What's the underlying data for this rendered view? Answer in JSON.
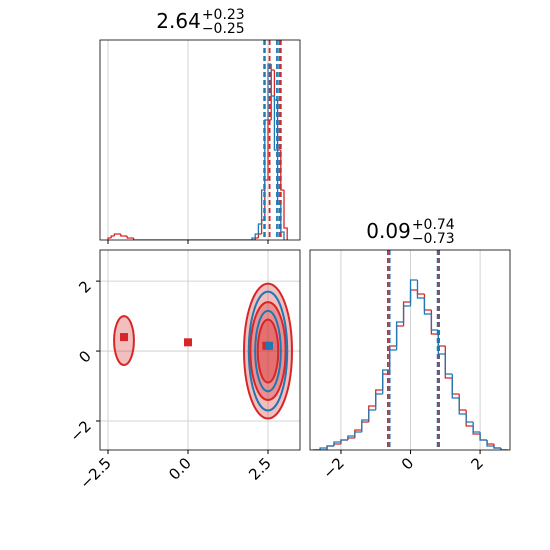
{
  "chart_data": [
    {
      "type": "histogram",
      "title": {
        "value": "2.64",
        "plus": "+0.23",
        "minus": "−0.25"
      },
      "xlim": [
        -2.75,
        3.5
      ],
      "ylim": [
        0,
        100
      ],
      "xticks": [
        -2.5,
        0,
        2.5
      ],
      "grid": true,
      "series": [
        {
          "color": "#d62728",
          "bins": [
            -2.5,
            -2.4,
            -2.3,
            -2.2,
            -2.1,
            -2.0,
            -1.9,
            -1.8,
            -1.7,
            -1.6,
            -1.5,
            -1.4,
            -1.3,
            -1.2,
            -1.1,
            -1.0,
            -0.9,
            -0.8,
            -0.7,
            -0.6,
            -0.5,
            -0.4,
            -0.3,
            -0.2,
            -0.1,
            0,
            0.1,
            0.2,
            0.3,
            0.4,
            0.5,
            0.6,
            0.7,
            0.8,
            0.9,
            1.0,
            1.1,
            1.2,
            1.3,
            1.4,
            1.5,
            1.6,
            1.7,
            1.8,
            1.9,
            2.0,
            2.1,
            2.2,
            2.3,
            2.4,
            2.5,
            2.6,
            2.7,
            2.8,
            2.9,
            3.0,
            3.1
          ],
          "values": [
            1,
            2,
            3,
            3,
            2,
            2,
            1,
            1,
            0,
            0,
            0,
            0,
            0,
            0,
            0,
            0,
            0,
            0,
            0,
            0,
            0,
            0,
            0,
            0,
            0,
            0,
            0,
            0,
            0,
            0,
            0,
            0,
            0,
            0,
            0,
            0,
            0,
            0,
            0,
            0,
            0,
            0,
            0,
            0,
            0,
            0,
            1,
            3,
            10,
            30,
            60,
            85,
            70,
            45,
            25,
            6
          ],
          "quantiles": [
            2.4,
            2.55,
            2.9
          ]
        },
        {
          "color": "#1f77b4",
          "bins": [
            2.0,
            2.1,
            2.2,
            2.3,
            2.4,
            2.5,
            2.6,
            2.7,
            2.8,
            2.9,
            3.0
          ],
          "values": [
            1,
            3,
            8,
            25,
            60,
            88,
            72,
            45,
            18,
            4
          ],
          "quantiles": [
            2.38,
            2.78,
            2.85
          ]
        }
      ]
    },
    {
      "type": "contour",
      "xlim": [
        -2.75,
        3.5
      ],
      "ylim": [
        -2.83,
        2.89
      ],
      "xticks": [
        {
          "value": -2.5,
          "label": "−2.5"
        },
        {
          "value": 0,
          "label": "0.0"
        },
        {
          "value": 2.5,
          "label": "2.5"
        }
      ],
      "yticks": [
        {
          "value": -2,
          "label": "−2"
        },
        0,
        2
      ],
      "grid": true,
      "series": [
        {
          "color": "#d62728",
          "fill": true,
          "ellipses": [
            {
              "cx": 2.5,
              "cy": 0,
              "rx": 0.75,
              "ry": 1.93
            },
            {
              "cx": 2.5,
              "cy": 0,
              "rx": 0.55,
              "ry": 1.4
            },
            {
              "cx": 2.5,
              "cy": 0,
              "rx": 0.32,
              "ry": 0.9
            },
            {
              "cx": -2.0,
              "cy": 0.3,
              "rx": 0.31,
              "ry": 0.7
            }
          ],
          "markers": [
            {
              "x": -2.0,
              "y": 0.4
            },
            {
              "x": 0.0,
              "y": 0.25
            },
            {
              "x": 2.45,
              "y": 0.15
            }
          ]
        },
        {
          "color": "#1f77b4",
          "fill": false,
          "ellipses": [
            {
              "cx": 2.5,
              "cy": 0,
              "rx": 0.6,
              "ry": 1.7
            },
            {
              "cx": 2.5,
              "cy": 0,
              "rx": 0.4,
              "ry": 1.15
            }
          ],
          "markers": [
            {
              "x": 2.53,
              "y": 0.15
            }
          ]
        }
      ]
    },
    {
      "type": "histogram",
      "title": {
        "value": "0.09",
        "plus": "+0.74",
        "minus": "−0.73"
      },
      "xlim": [
        -2.89,
        2.86
      ],
      "ylim": [
        0,
        100
      ],
      "xticks": [
        {
          "value": -2,
          "label": "−2"
        },
        0,
        2
      ],
      "grid": true,
      "series": [
        {
          "color": "#d62728",
          "bins": [
            -2.8,
            -2.6,
            -2.4,
            -2.2,
            -2.0,
            -1.8,
            -1.6,
            -1.4,
            -1.2,
            -1.0,
            -0.8,
            -0.6,
            -0.4,
            -0.2,
            0,
            0.2,
            0.4,
            0.6,
            0.8,
            1.0,
            1.2,
            1.4,
            1.6,
            1.8,
            2.0,
            2.2,
            2.4,
            2.6,
            2.8
          ],
          "values": [
            0,
            0,
            2,
            3,
            5,
            6,
            10,
            14,
            22,
            30,
            38,
            52,
            62,
            74,
            80,
            78,
            70,
            58,
            52,
            36,
            28,
            20,
            12,
            8,
            5,
            3,
            1,
            0
          ],
          "quantiles": [
            -0.65,
            0.82
          ]
        },
        {
          "color": "#1f77b4",
          "bins": [
            -2.8,
            -2.6,
            -2.4,
            -2.2,
            -2.0,
            -1.8,
            -1.6,
            -1.4,
            -1.2,
            -1.0,
            -0.8,
            -0.6,
            -0.4,
            -0.2,
            0,
            0.2,
            0.4,
            0.6,
            0.8,
            1.0,
            1.2,
            1.4,
            1.6,
            1.8,
            2.0,
            2.2,
            2.4,
            2.6,
            2.8
          ],
          "values": [
            0,
            1,
            2,
            4,
            5,
            7,
            9,
            15,
            20,
            28,
            40,
            50,
            64,
            72,
            85,
            76,
            68,
            60,
            48,
            38,
            26,
            18,
            14,
            9,
            5,
            2,
            1,
            0
          ],
          "quantiles": [
            -0.6,
            0.78
          ]
        }
      ]
    }
  ]
}
